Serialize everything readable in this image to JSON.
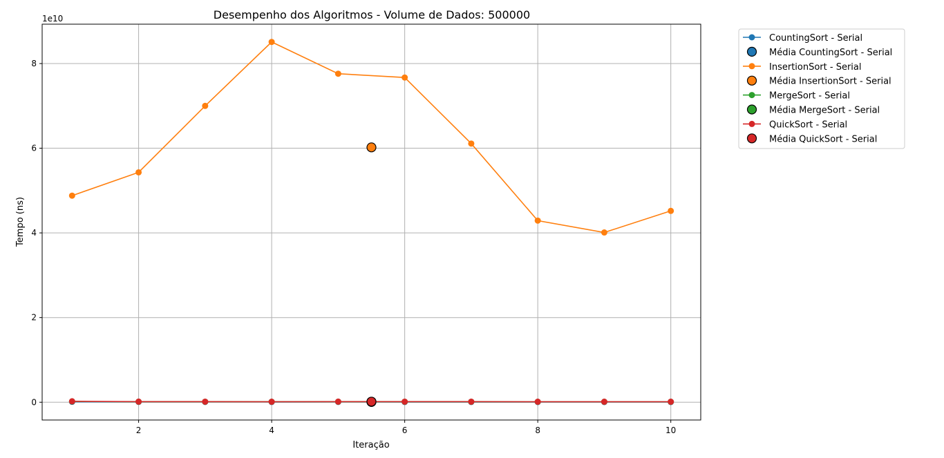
{
  "chart_data": {
    "type": "line",
    "title": "Desempenho dos Algoritmos - Volume de Dados: 500000",
    "xlabel": "Iteração",
    "ylabel": "Tempo (ns)",
    "y_offset_text": "1e10",
    "xlim": [
      0.55,
      10.45
    ],
    "ylim": [
      -4200000000.0,
      89300000000.0
    ],
    "x_ticks": [
      2,
      4,
      6,
      8,
      10
    ],
    "y_ticks": [
      0,
      20000000000.0,
      40000000000.0,
      60000000000.0,
      80000000000.0
    ],
    "y_tick_labels": [
      "0",
      "2",
      "4",
      "6",
      "8"
    ],
    "grid": true,
    "legend_position": "outside-right",
    "x": [
      1,
      2,
      3,
      4,
      5,
      6,
      7,
      8,
      9,
      10
    ],
    "series": [
      {
        "name": "CountingSort - Serial",
        "mean_name": "Média CountingSort - Serial",
        "color": "#1f77b4",
        "values": [
          100000000.0,
          80000000.0,
          70000000.0,
          60000000.0,
          70000000.0,
          60000000.0,
          60000000.0,
          50000000.0,
          50000000.0,
          50000000.0
        ],
        "mean": 65000000.0
      },
      {
        "name": "InsertionSort - Serial",
        "mean_name": "Média InsertionSort - Serial",
        "color": "#ff7f0e",
        "values": [
          48800000000.0,
          54300000000.0,
          70000000000.0,
          85100000000.0,
          77600000000.0,
          76700000000.0,
          61100000000.0,
          42900000000.0,
          40100000000.0,
          45200000000.0
        ],
        "mean": 60200000000.0
      },
      {
        "name": "MergeSort - Serial",
        "mean_name": "Média MergeSort - Serial",
        "color": "#2ca02c",
        "values": [
          180000000.0,
          120000000.0,
          110000000.0,
          110000000.0,
          120000000.0,
          110000000.0,
          110000000.0,
          100000000.0,
          100000000.0,
          100000000.0
        ],
        "mean": 116000000.0
      },
      {
        "name": "QuickSort - Serial",
        "mean_name": "Média QuickSort - Serial",
        "color": "#d62728",
        "values": [
          220000000.0,
          140000000.0,
          130000000.0,
          120000000.0,
          140000000.0,
          130000000.0,
          130000000.0,
          120000000.0,
          120000000.0,
          120000000.0
        ],
        "mean": 137000000.0
      }
    ],
    "mean_x": 5.5
  }
}
